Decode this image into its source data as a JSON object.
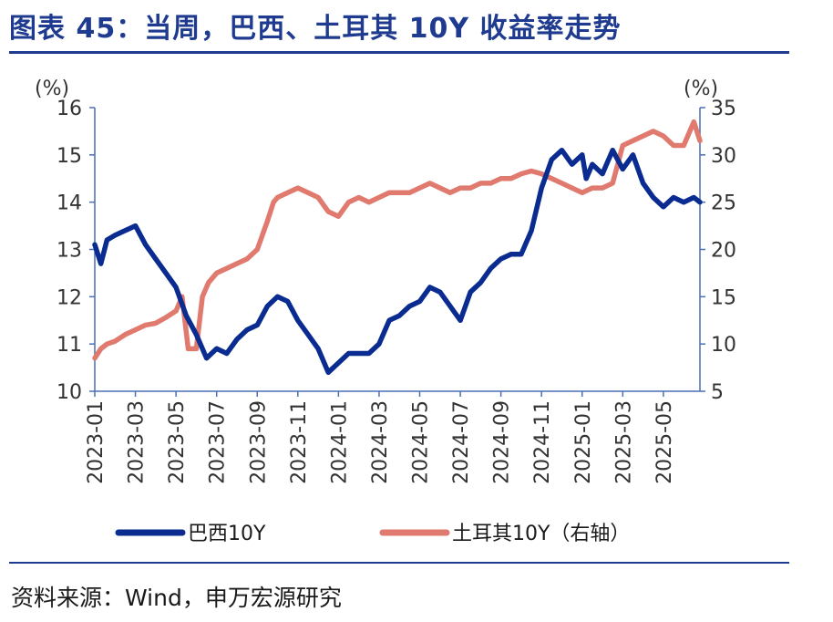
{
  "title": "图表 45：当周，巴西、土耳其 10Y 收益率走势",
  "source": "资料来源：Wind，申万宏源研究",
  "colors": {
    "brazil": "#0a2b8f",
    "turkey": "#e07a6e",
    "axis": "#4a6fb5",
    "accent": "#1f3b8f"
  },
  "chart_data": {
    "type": "line",
    "title": "当周，巴西、土耳其 10Y 收益率走势",
    "left_unit": "(%)",
    "right_unit": "(%)",
    "y_left": {
      "min": 10,
      "max": 16,
      "ticks": [
        10,
        11,
        12,
        13,
        14,
        15,
        16
      ]
    },
    "y_right": {
      "min": 5,
      "max": 35,
      "ticks": [
        5,
        10,
        15,
        20,
        25,
        30,
        35
      ]
    },
    "x_range": [
      "2023-01",
      "2025-06"
    ],
    "x_ticks": [
      "2023-01",
      "2023-03",
      "2023-05",
      "2023-07",
      "2023-09",
      "2023-11",
      "2024-01",
      "2024-03",
      "2024-05",
      "2024-07",
      "2024-09",
      "2024-11",
      "2025-01",
      "2025-03",
      "2025-05"
    ],
    "legend": [
      "巴西10Y",
      "土耳其10Y（右轴）"
    ],
    "legend_position": "bottom",
    "series": [
      {
        "name": "巴西10Y",
        "axis": "left",
        "x_month_index": [
          0,
          0.3,
          0.6,
          1,
          1.5,
          2,
          2.5,
          3,
          3.5,
          4,
          4.5,
          5,
          5.5,
          6,
          6.5,
          7,
          7.5,
          8,
          8.5,
          9,
          9.5,
          10,
          10.5,
          11,
          11.5,
          12,
          12.5,
          13,
          13.5,
          14,
          14.5,
          15,
          15.5,
          16,
          16.5,
          17,
          17.5,
          18,
          18.5,
          19,
          19.5,
          20,
          20.5,
          21,
          21.5,
          22,
          22.5,
          23,
          23.5,
          24,
          24.2,
          24.5,
          25,
          25.5,
          26,
          26.5,
          27,
          27.5,
          28,
          28.5,
          29,
          29.5,
          29.8
        ],
        "values": [
          13.1,
          12.7,
          13.2,
          13.3,
          13.4,
          13.5,
          13.1,
          12.8,
          12.5,
          12.2,
          11.6,
          11.2,
          10.7,
          10.9,
          10.8,
          11.1,
          11.3,
          11.4,
          11.8,
          12.0,
          11.9,
          11.5,
          11.2,
          10.9,
          10.4,
          10.6,
          10.8,
          10.8,
          10.8,
          11.0,
          11.5,
          11.6,
          11.8,
          11.9,
          12.2,
          12.1,
          11.8,
          11.5,
          12.1,
          12.3,
          12.6,
          12.8,
          12.9,
          12.9,
          13.4,
          14.3,
          14.9,
          15.1,
          14.8,
          15.0,
          14.5,
          14.8,
          14.6,
          15.1,
          14.7,
          15.0,
          14.4,
          14.1,
          13.9,
          14.1,
          14.0,
          14.1,
          14.0
        ]
      },
      {
        "name": "土耳其10Y（右轴）",
        "axis": "right",
        "x_month_index": [
          0,
          0.3,
          0.6,
          1,
          1.5,
          2,
          2.5,
          3,
          3.5,
          4,
          4.3,
          4.6,
          5,
          5.3,
          5.6,
          6,
          6.5,
          7,
          7.5,
          8,
          8.5,
          8.8,
          9,
          9.5,
          10,
          10.5,
          11,
          11.5,
          12,
          12.5,
          13,
          13.5,
          14,
          14.5,
          15,
          15.5,
          16,
          16.5,
          17,
          17.5,
          18,
          18.5,
          19,
          19.5,
          20,
          20.5,
          21,
          21.5,
          22,
          22.5,
          23,
          23.5,
          24,
          24.5,
          25,
          25.5,
          26,
          26.5,
          27,
          27.5,
          28,
          28.5,
          29,
          29.5,
          29.8
        ],
        "values": [
          8.5,
          9.5,
          10.0,
          10.3,
          11.0,
          11.5,
          12.0,
          12.2,
          12.8,
          13.5,
          15.0,
          9.5,
          9.5,
          15.0,
          16.5,
          17.5,
          18.0,
          18.5,
          19.0,
          20.0,
          23.0,
          25.0,
          25.5,
          26.0,
          26.5,
          26.0,
          25.5,
          24.0,
          23.5,
          25.0,
          25.5,
          25.0,
          25.5,
          26.0,
          26.0,
          26.0,
          26.5,
          27.0,
          26.5,
          26.0,
          26.5,
          26.5,
          27.0,
          27.0,
          27.5,
          27.5,
          28.0,
          28.3,
          28.0,
          27.5,
          27.0,
          26.5,
          26.0,
          26.5,
          26.5,
          27.0,
          31.0,
          31.5,
          32.0,
          32.5,
          32.0,
          31.0,
          31.0,
          33.5,
          31.5
        ]
      }
    ]
  }
}
